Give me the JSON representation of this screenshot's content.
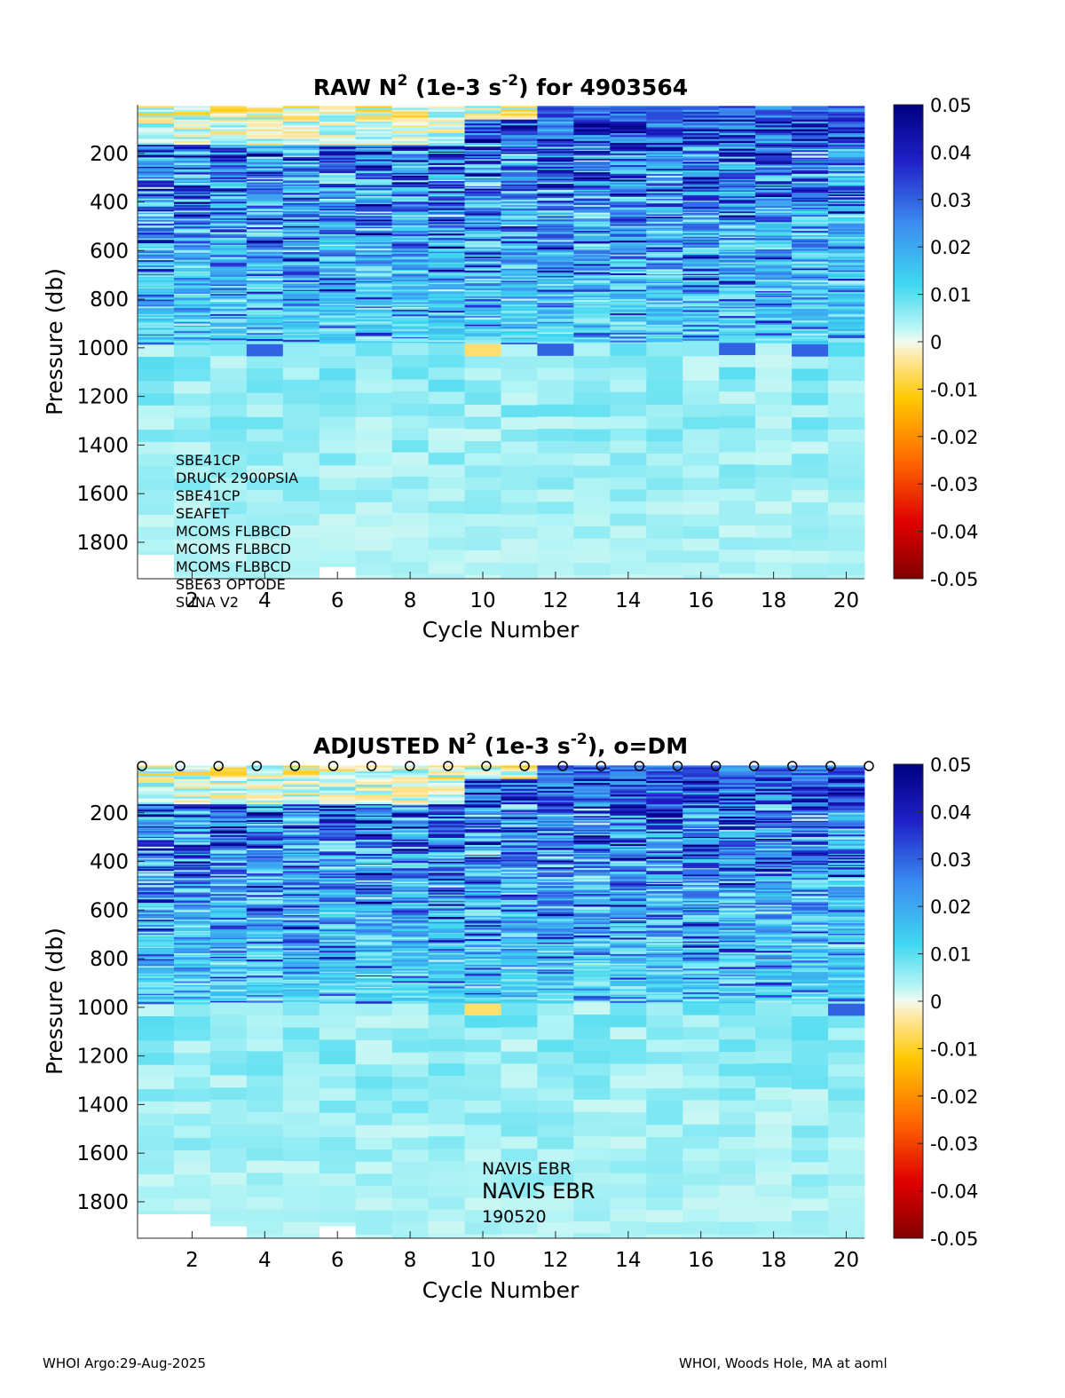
{
  "footer": {
    "left": "WHOI Argo:29-Aug-2025",
    "right": "WHOI, Woods Hole, MA at aoml"
  },
  "chart_data": [
    {
      "type": "heatmap",
      "title_parts": [
        "RAW N",
        "2",
        " (1e-3 s",
        "-2",
        ") for 4903564"
      ],
      "xlabel": "Cycle Number",
      "ylabel": "Pressure (db)",
      "xlim": [
        1,
        20
      ],
      "ylim": [
        0,
        1950
      ],
      "y_reversed": true,
      "xticks": [
        2,
        4,
        6,
        8,
        10,
        12,
        14,
        16,
        18,
        20
      ],
      "yticks": [
        200,
        400,
        600,
        800,
        1000,
        1200,
        1400,
        1600,
        1800
      ],
      "colorbar": {
        "range": [
          -0.05,
          0.05
        ],
        "ticks": [
          "0.05",
          "0.04",
          "0.03",
          "0.02",
          "0.01",
          "0",
          "-0.01",
          "-0.02",
          "-0.03",
          "-0.04",
          "-0.05"
        ]
      },
      "profile_max_pressure": [
        1850,
        1950,
        1950,
        1950,
        1950,
        1900,
        1950,
        1950,
        1950,
        1950,
        1950,
        1950,
        1950,
        1950,
        1950,
        1950,
        1950,
        1950,
        1950,
        1950
      ],
      "annotations": [
        "SBE41CP",
        "DRUCK 2900PSIA",
        "SBE41CP",
        "SEAFET",
        "MCOMS FLBBCD",
        "MCOMS FLBBCD",
        "MCOMS FLBBCD",
        "SBE63 OPTODE",
        "SUNA V2"
      ],
      "dm_markers": false,
      "seed": 7
    },
    {
      "type": "heatmap",
      "title_parts": [
        "ADJUSTED N",
        "2",
        " (1e-3 s",
        "-2",
        "), o=DM"
      ],
      "xlabel": "Cycle Number",
      "ylabel": "Pressure (db)",
      "xlim": [
        1,
        20
      ],
      "ylim": [
        0,
        1950
      ],
      "y_reversed": true,
      "xticks": [
        2,
        4,
        6,
        8,
        10,
        12,
        14,
        16,
        18,
        20
      ],
      "yticks": [
        200,
        400,
        600,
        800,
        1000,
        1200,
        1400,
        1600,
        1800
      ],
      "colorbar": {
        "range": [
          -0.05,
          0.05
        ],
        "ticks": [
          "0.05",
          "0.04",
          "0.03",
          "0.02",
          "0.01",
          "0",
          "-0.01",
          "-0.02",
          "-0.03",
          "-0.04",
          "-0.05"
        ]
      },
      "profile_max_pressure": [
        1850,
        1850,
        1900,
        1950,
        1950,
        1900,
        1950,
        1950,
        1950,
        1950,
        1950,
        1950,
        1950,
        1950,
        1950,
        1950,
        1950,
        1950,
        1950,
        1950
      ],
      "annotations_small": [
        "NAVIS EBR"
      ],
      "annotations_large": [
        "NAVIS EBR"
      ],
      "annotations_date": [
        "190520"
      ],
      "dm_markers": true,
      "dm_cycles": [
        1,
        2,
        3,
        4,
        5,
        6,
        7,
        8,
        9,
        10,
        11,
        12,
        13,
        14,
        15,
        16,
        17,
        18,
        19,
        20
      ],
      "seed": 7
    }
  ]
}
